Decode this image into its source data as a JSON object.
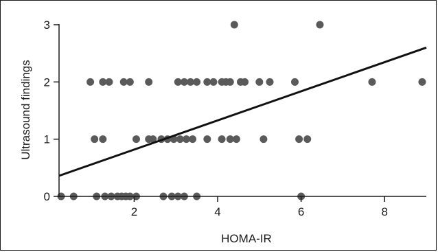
{
  "chart_data": {
    "type": "scatter",
    "title": "",
    "xlabel": "HOMA-IR",
    "ylabel": "Ultrasound findings",
    "xlim": [
      0.2,
      9.0
    ],
    "ylim": [
      0,
      3
    ],
    "x_ticks": [
      2,
      4,
      6,
      8
    ],
    "y_ticks": [
      0,
      1,
      2,
      3
    ],
    "grid": false,
    "colors": {
      "points": "#5a5a5a",
      "line": "#111111",
      "axes": "#1a1a1a"
    },
    "series": [
      {
        "points": [
          [
            0.25,
            0
          ],
          [
            0.55,
            0
          ],
          [
            1.1,
            0
          ],
          [
            1.3,
            0
          ],
          [
            1.45,
            0
          ],
          [
            1.6,
            0
          ],
          [
            1.7,
            0
          ],
          [
            1.8,
            0
          ],
          [
            1.9,
            0
          ],
          [
            2.05,
            0
          ],
          [
            2.7,
            0
          ],
          [
            2.9,
            0
          ],
          [
            3.05,
            0
          ],
          [
            3.2,
            0
          ],
          [
            3.5,
            0
          ],
          [
            6.0,
            0
          ],
          [
            1.05,
            1
          ],
          [
            1.25,
            1
          ],
          [
            2.05,
            1
          ],
          [
            2.35,
            1
          ],
          [
            2.45,
            1
          ],
          [
            2.65,
            1
          ],
          [
            2.8,
            1
          ],
          [
            2.95,
            1
          ],
          [
            3.1,
            1
          ],
          [
            3.25,
            1
          ],
          [
            3.4,
            1
          ],
          [
            3.75,
            1
          ],
          [
            4.1,
            1
          ],
          [
            4.3,
            1
          ],
          [
            4.45,
            1
          ],
          [
            5.1,
            1
          ],
          [
            5.95,
            1
          ],
          [
            6.15,
            1
          ],
          [
            0.95,
            2
          ],
          [
            1.25,
            2
          ],
          [
            1.4,
            2
          ],
          [
            1.75,
            2
          ],
          [
            1.9,
            2
          ],
          [
            2.35,
            2
          ],
          [
            3.05,
            2
          ],
          [
            3.2,
            2
          ],
          [
            3.35,
            2
          ],
          [
            3.5,
            2
          ],
          [
            3.75,
            2
          ],
          [
            3.9,
            2
          ],
          [
            4.1,
            2
          ],
          [
            4.2,
            2
          ],
          [
            4.3,
            2
          ],
          [
            4.55,
            2
          ],
          [
            4.65,
            2
          ],
          [
            5.0,
            2
          ],
          [
            5.25,
            2
          ],
          [
            5.85,
            2
          ],
          [
            7.7,
            2
          ],
          [
            8.9,
            2
          ],
          [
            4.4,
            3
          ],
          [
            6.45,
            3
          ]
        ]
      }
    ],
    "trendline": {
      "x": [
        0.2,
        9.0
      ],
      "y": [
        0.36,
        2.6
      ]
    }
  }
}
